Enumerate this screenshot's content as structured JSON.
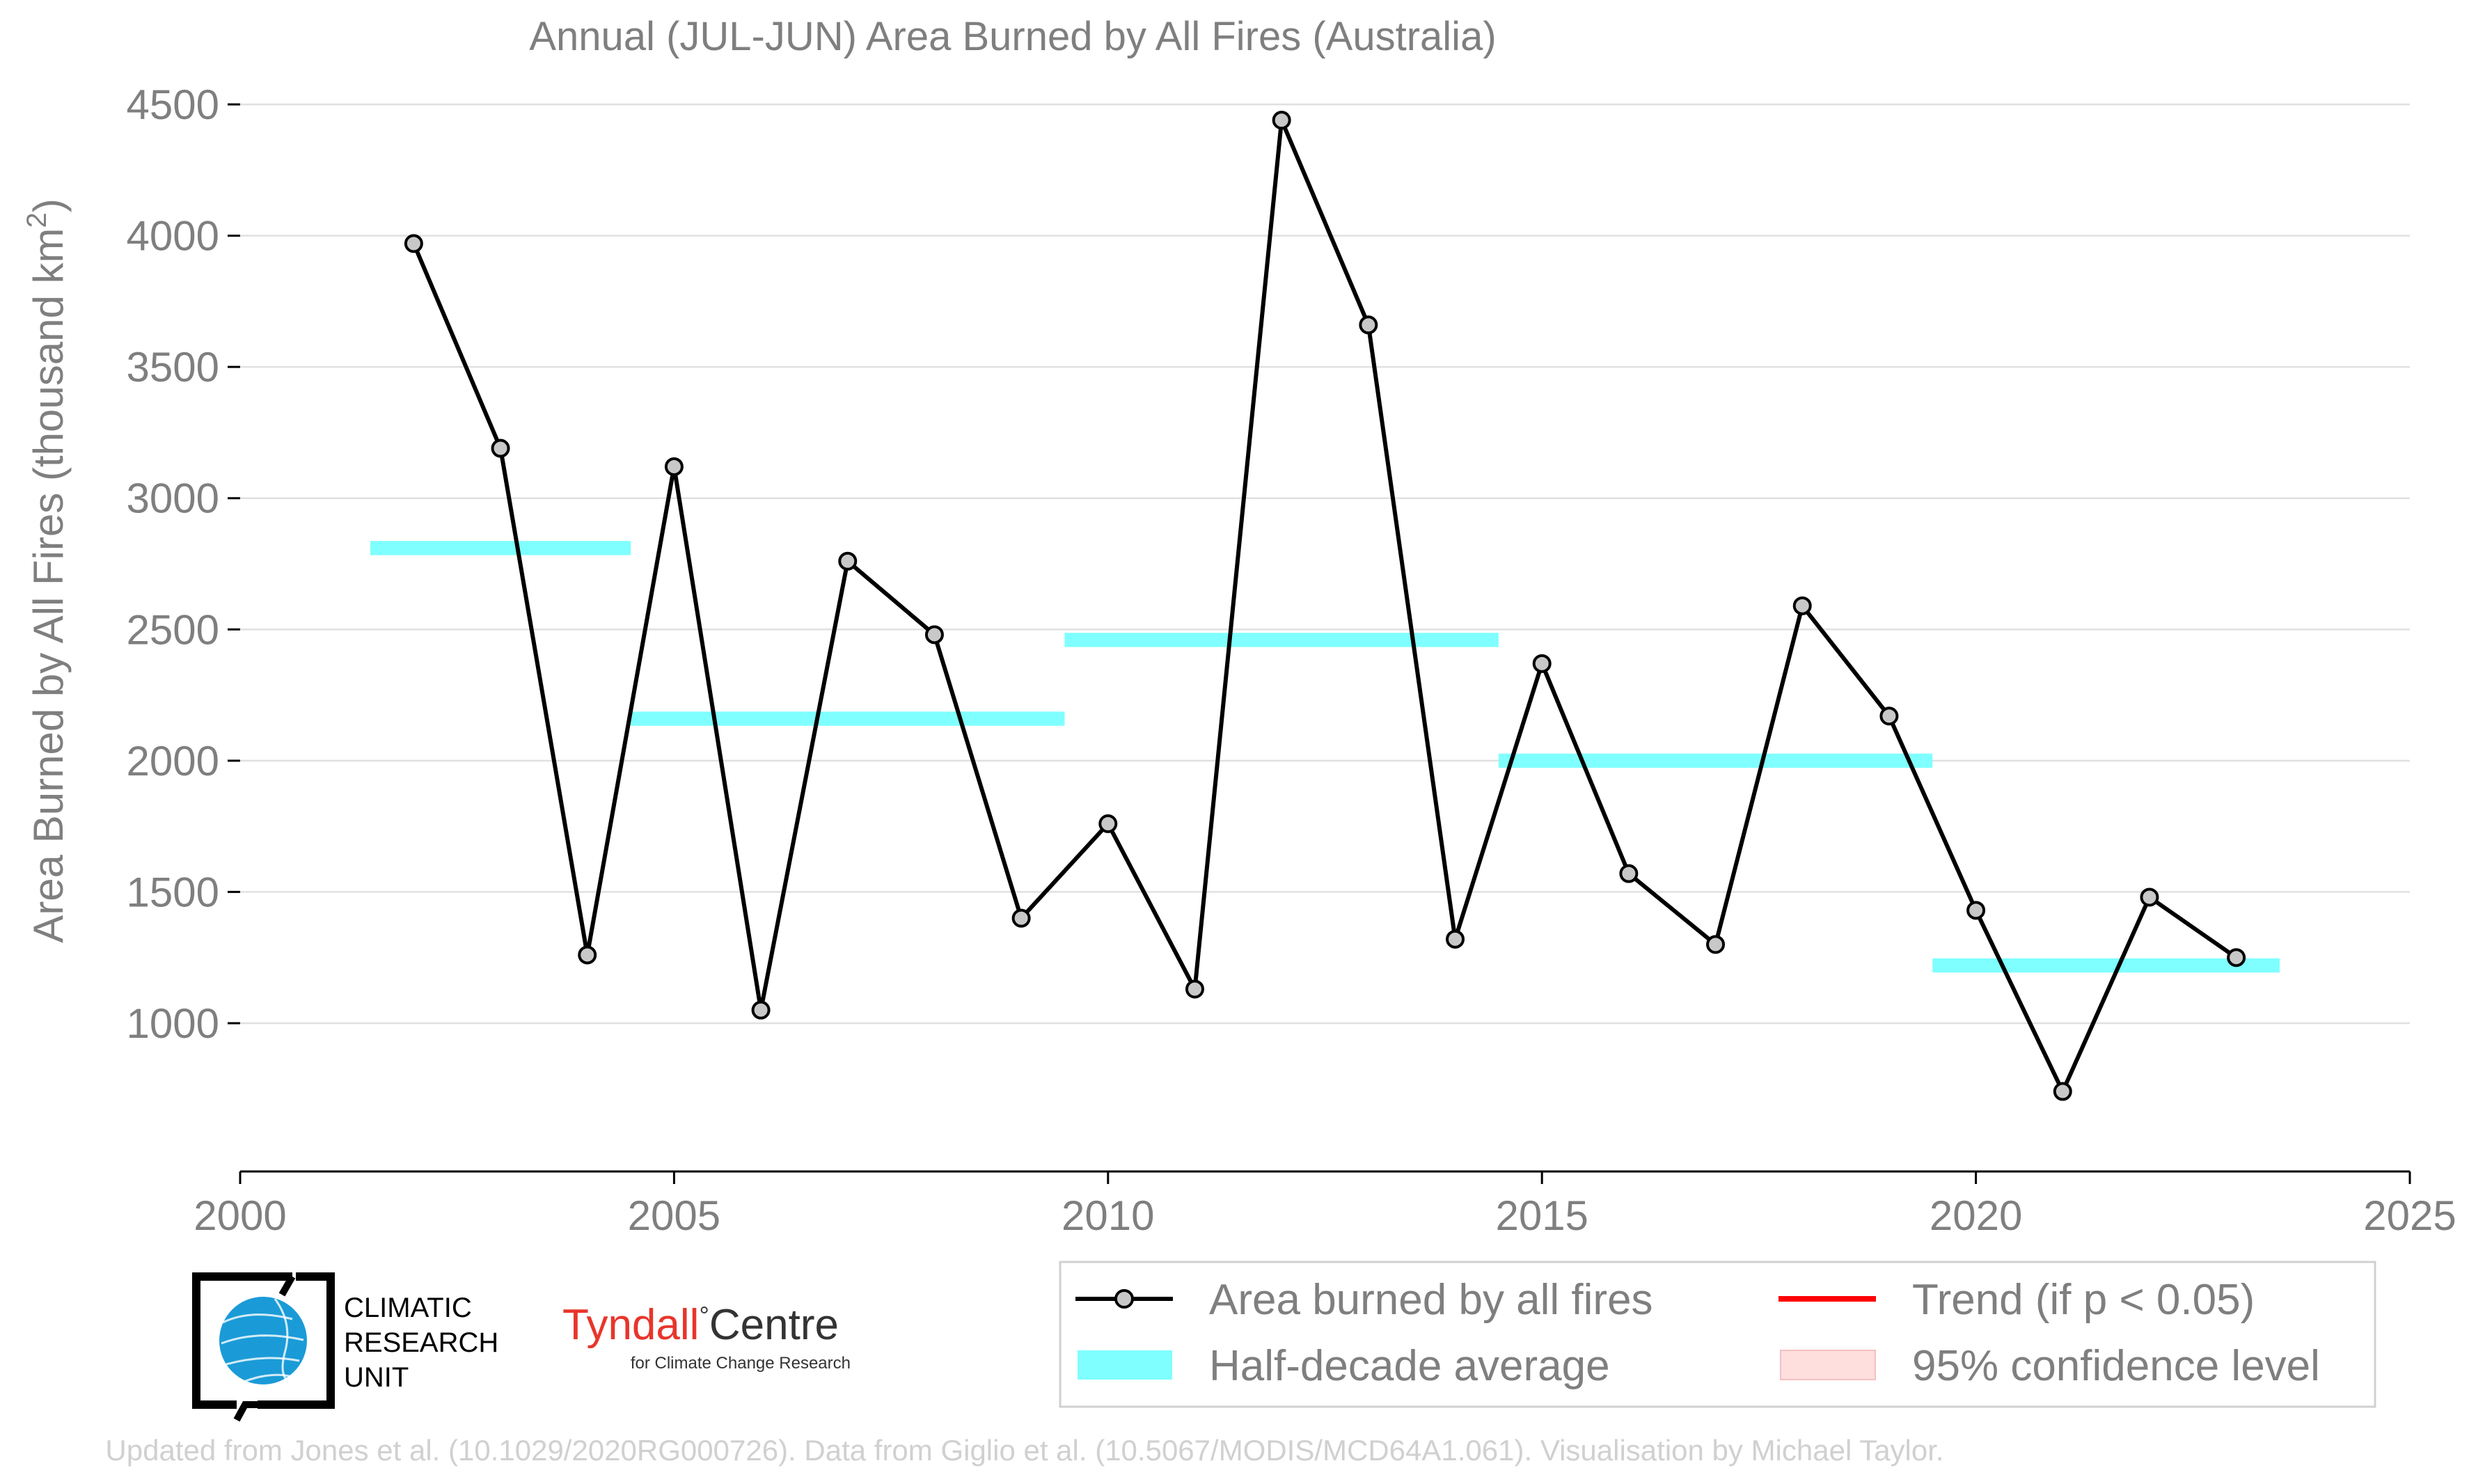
{
  "chart_data": {
    "type": "line",
    "title": "Annual (JUL-JUN) Area Burned by All Fires (Australia)",
    "xlabel": "",
    "ylabel": "Area Burned by All Fires (thousand km",
    "ylabel_superscript": "2",
    "ylabel_suffix": ")",
    "xlim": [
      2000,
      2025
    ],
    "ylim": [
      450,
      4500
    ],
    "xticks": [
      2000,
      2005,
      2010,
      2015,
      2020,
      2025
    ],
    "yticks": [
      1000,
      1500,
      2000,
      2500,
      3000,
      3500,
      4000,
      4500
    ],
    "grid": true,
    "series": [
      {
        "name": "Area burned by all fires",
        "color": "#000000",
        "marker_fill": "#c8c8c8",
        "x": [
          2002,
          2003,
          2004,
          2005,
          2006,
          2007,
          2008,
          2009,
          2010,
          2011,
          2012,
          2013,
          2014,
          2015,
          2016,
          2017,
          2018,
          2019,
          2020,
          2021,
          2022,
          2023
        ],
        "y": [
          3970,
          3190,
          1260,
          3120,
          1050,
          2760,
          2480,
          1400,
          1760,
          1130,
          4440,
          3660,
          1320,
          2370,
          1570,
          1300,
          2590,
          2170,
          1430,
          740,
          1480,
          1250
        ]
      }
    ],
    "half_decade_averages": [
      {
        "x_start": 2001.5,
        "x_end": 2004.5,
        "y": 2810
      },
      {
        "x_start": 2004.5,
        "x_end": 2009.5,
        "y": 2160
      },
      {
        "x_start": 2009.5,
        "x_end": 2014.5,
        "y": 2460
      },
      {
        "x_start": 2014.5,
        "x_end": 2019.5,
        "y": 2000
      },
      {
        "x_start": 2019.5,
        "x_end": 2023.5,
        "y": 1220
      }
    ],
    "legend": {
      "placement": "bottom-right",
      "items": [
        {
          "label": "Area burned by all fires",
          "kind": "line-marker",
          "color": "#000000"
        },
        {
          "label": "Trend (if p < 0.05)",
          "kind": "line",
          "color": "#ff0000"
        },
        {
          "label": "Half-decade average",
          "kind": "band",
          "color": "#7fffff"
        },
        {
          "label": "95% confidence level",
          "kind": "band",
          "color": "#ffdede"
        }
      ]
    },
    "colors": {
      "text": "#7f7f7f",
      "grid": "#e0e0e0",
      "band": "#7fffff",
      "trend": "#ff0000",
      "confidence": "#ffdede"
    }
  },
  "logos": {
    "cru": {
      "lines": [
        "CLIMATIC",
        "RESEARCH",
        "UNIT"
      ],
      "icon": "globe-icon"
    },
    "tyndall": {
      "main": "Tyndall",
      "degree": "°",
      "rest": "Centre",
      "sub": "for Climate Change Research",
      "main_color": "#e8352b"
    }
  },
  "footer": "Updated from Jones et al. (10.1029/2020RG000726). Data from Giglio et al. (10.5067/MODIS/MCD64A1.061). Visualisation by Michael Taylor."
}
